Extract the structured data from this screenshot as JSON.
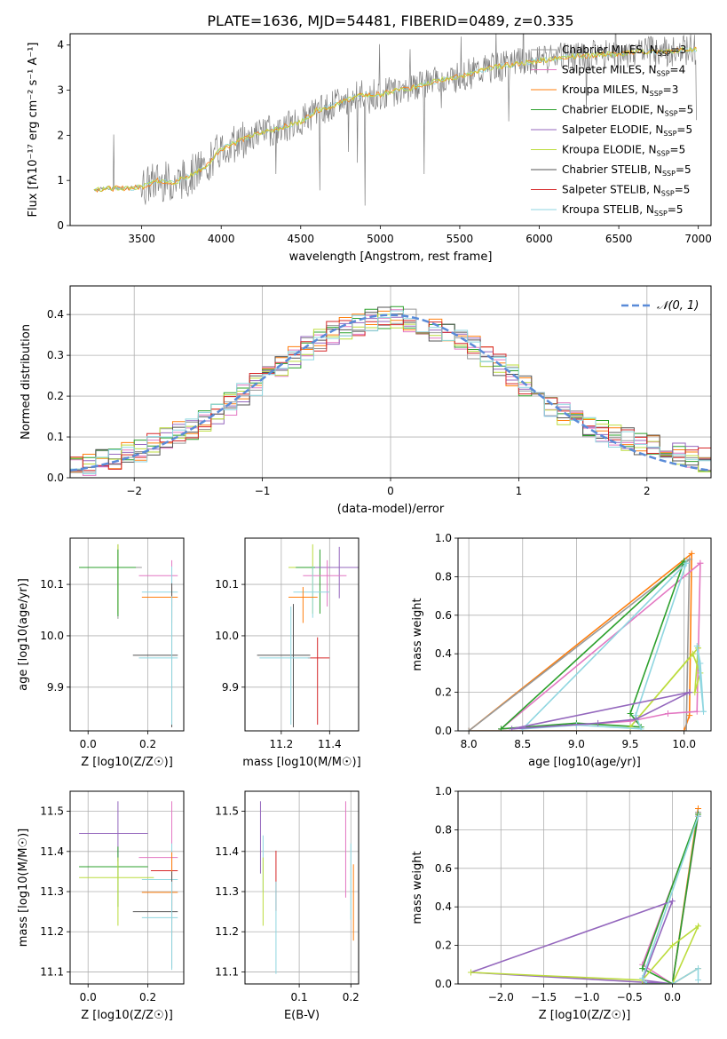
{
  "title": "PLATE=1636, MJD=54481, FIBERID=0489, z=0.335",
  "colors": {
    "Chabrier MILES": "#999999",
    "Salpeter MILES": "#e377c2",
    "Kroupa MILES": "#ff7f0e",
    "Chabrier ELODIE": "#2ca02c",
    "Salpeter ELODIE": "#9467bd",
    "Kroupa ELODIE": "#bcdc3e",
    "Chabrier STELIB": "#555555",
    "Salpeter STELIB": "#d62728",
    "Kroupa STELIB": "#8fd6e0",
    "normal": "#5a8bd8",
    "data": "#808080"
  },
  "chart_data": [
    {
      "id": "spectrum",
      "type": "line",
      "xlabel": "wavelength [Angstrom, rest frame]",
      "ylabel": "Flux [fλ10⁻¹⁷ erg cm⁻² s⁻¹ A⁻¹]",
      "xlim": [
        3050,
        7080
      ],
      "ylim": [
        0,
        4.25
      ],
      "xticks": [
        3500,
        4000,
        4500,
        5000,
        5500,
        6000,
        6500,
        7000
      ],
      "yticks": [
        0,
        1,
        2,
        3,
        4
      ],
      "data_curve": {
        "x": [
          3200,
          3300,
          3400,
          3500,
          3600,
          3700,
          3800,
          3900,
          4000,
          4100,
          4200,
          4300,
          4400,
          4500,
          4600,
          4700,
          4800,
          4900,
          5000,
          5100,
          5200,
          5300,
          5400,
          5500,
          5600,
          5700,
          5800,
          5900,
          6000,
          6100,
          6200,
          6300,
          6400,
          6500,
          6600,
          6700,
          6800,
          6900
        ],
        "y": [
          0.8,
          0.82,
          0.83,
          0.85,
          1.0,
          0.95,
          1.1,
          1.3,
          1.7,
          1.85,
          2.0,
          2.1,
          2.2,
          2.3,
          2.55,
          2.65,
          2.8,
          2.9,
          2.9,
          3.0,
          3.05,
          3.15,
          3.25,
          3.3,
          3.4,
          3.5,
          3.55,
          3.6,
          3.65,
          3.7,
          3.75,
          3.75,
          3.8,
          3.8,
          3.85,
          3.85,
          3.85,
          3.9
        ]
      },
      "legend": [
        "Chabrier MILES, N_SSP=3",
        "Salpeter MILES, N_SSP=4",
        "Kroupa MILES, N_SSP=3",
        "Chabrier ELODIE, N_SSP=5",
        "Salpeter ELODIE, N_SSP=5",
        "Kroupa ELODIE, N_SSP=5",
        "Chabrier STELIB, N_SSP=5",
        "Salpeter STELIB, N_SSP=5",
        "Kroupa STELIB, N_SSP=5"
      ]
    },
    {
      "id": "residuals",
      "type": "histogram",
      "xlabel": "(data-model)/error",
      "ylabel": "Normed distribution",
      "xlim": [
        -2.5,
        2.5
      ],
      "ylim": [
        0,
        0.47
      ],
      "xticks": [
        -2,
        -1,
        0,
        1,
        2
      ],
      "yticks": [
        0.0,
        0.1,
        0.2,
        0.3,
        0.4
      ],
      "bin_width": 0.1,
      "legend": [
        "𝒩(0, 1)"
      ],
      "model_envelope": {
        "x": [
          -2.5,
          -2.0,
          -1.5,
          -1.2,
          -1.0,
          -0.5,
          0.0,
          0.5,
          1.0,
          1.2,
          1.5,
          2.0,
          2.5
        ],
        "y": [
          0.025,
          0.06,
          0.13,
          0.19,
          0.24,
          0.35,
          0.4,
          0.35,
          0.24,
          0.19,
          0.13,
          0.08,
          0.04
        ]
      }
    },
    {
      "id": "age-vs-Z",
      "type": "errorbar",
      "xlabel": "Z [log10(Z/Z☉)]",
      "ylabel": "age [log10(age/yr)]",
      "xlim": [
        -0.06,
        0.32
      ],
      "ylim": [
        9.815,
        10.19
      ],
      "xticks": [
        0.0,
        0.2
      ],
      "yticks": [
        9.9,
        10.0,
        10.1
      ],
      "points": [
        {
          "model": "Chabrier MILES",
          "x": 0.1,
          "y": 10.133,
          "xerr": [
            0.13,
            0.08
          ],
          "yerr": [
            0.1,
            0.045
          ]
        },
        {
          "model": "Kroupa ELODIE",
          "x": 0.1,
          "y": 10.133,
          "xerr": [
            0.12,
            0.05
          ],
          "yerr": [
            0.09,
            0.045
          ]
        },
        {
          "model": "Chabrier ELODIE",
          "x": 0.1,
          "y": 10.133,
          "xerr": [
            0.13,
            0.06
          ],
          "yerr": [
            0.095,
            0.035
          ]
        },
        {
          "model": "Salpeter MILES",
          "x": 0.28,
          "y": 10.117,
          "xerr": [
            0.11,
            0.02
          ],
          "yerr": [
            0.06,
            0.03
          ]
        },
        {
          "model": "Kroupa STELIB",
          "x": 0.28,
          "y": 10.085,
          "xerr": [
            0.1,
            0.02
          ],
          "yerr": [
            0.05,
            0.05
          ]
        },
        {
          "model": "Kroupa MILES",
          "x": 0.28,
          "y": 10.075,
          "xerr": [
            0.1,
            0.02
          ],
          "yerr": [
            0.05,
            0.02
          ]
        },
        {
          "model": "Chabrier STELIB",
          "x": 0.28,
          "y": 9.962,
          "xerr": [
            0.13,
            0.02
          ],
          "yerr": [
            0.14,
            0.14
          ]
        },
        {
          "model": "Kroupa STELIB",
          "x": 0.28,
          "y": 9.957,
          "xerr": [
            0.11,
            0.02
          ],
          "yerr": [
            0.13,
            0.12
          ]
        }
      ]
    },
    {
      "id": "age-vs-mass",
      "type": "errorbar",
      "xlabel": "mass [log10(M/M☉)]",
      "ylim": [
        9.815,
        10.19
      ],
      "xlim": [
        11.05,
        11.52
      ],
      "xticks": [
        11.2,
        11.4
      ],
      "yticks": [
        9.9,
        10.0,
        10.1
      ],
      "points": [
        {
          "model": "Kroupa ELODIE",
          "x": 11.33,
          "y": 10.133,
          "xerr": [
            0.1,
            0.07
          ],
          "yerr": [
            0.09,
            0.045
          ]
        },
        {
          "model": "Chabrier ELODIE",
          "x": 11.36,
          "y": 10.133,
          "xerr": [
            0.1,
            0.03
          ],
          "yerr": [
            0.09,
            0.035
          ]
        },
        {
          "model": "Salpeter ELODIE",
          "x": 11.44,
          "y": 10.133,
          "xerr": [
            0.1,
            0.08
          ],
          "yerr": [
            0.06,
            0.04
          ]
        },
        {
          "model": "Salpeter MILES",
          "x": 11.39,
          "y": 10.117,
          "xerr": [
            0.1,
            0.08
          ],
          "yerr": [
            0.06,
            0.03
          ]
        },
        {
          "model": "Kroupa STELIB",
          "x": 11.33,
          "y": 10.085,
          "xerr": [
            0.08,
            0.07
          ],
          "yerr": [
            0.05,
            0.05
          ]
        },
        {
          "model": "Kroupa MILES",
          "x": 11.29,
          "y": 10.075,
          "xerr": [
            0.06,
            0.06
          ],
          "yerr": [
            0.05,
            0.02
          ]
        },
        {
          "model": "Chabrier STELIB",
          "x": 11.25,
          "y": 9.962,
          "xerr": [
            0.15,
            0.07
          ],
          "yerr": [
            0.14,
            0.1
          ]
        },
        {
          "model": "Salpeter STELIB",
          "x": 11.35,
          "y": 9.957,
          "xerr": [
            0.04,
            0.05
          ],
          "yerr": [
            0.13,
            0.04
          ]
        },
        {
          "model": "Kroupa STELIB",
          "x": 11.24,
          "y": 9.957,
          "xerr": [
            0.13,
            0.08
          ],
          "yerr": [
            0.13,
            0.1
          ]
        }
      ]
    },
    {
      "id": "weight-vs-age",
      "type": "line",
      "xlabel": "age [log10(age/yr)]",
      "ylabel": "mass weight",
      "xlim": [
        7.9,
        10.25
      ],
      "ylim": [
        0,
        1.0
      ],
      "xticks": [
        8.0,
        8.5,
        9.0,
        9.5,
        10.0
      ],
      "yticks": [
        0.0,
        0.2,
        0.4,
        0.6,
        0.8,
        1.0
      ],
      "series": [
        {
          "model": "Kroupa MILES",
          "x": [
            8.0,
            10.07,
            10.05,
            10.0,
            8.0
          ],
          "y": [
            0.0,
            0.92,
            0.08,
            0.0,
            0.0
          ]
        },
        {
          "model": "Chabrier MILES",
          "x": [
            8.0,
            10.05,
            10.02,
            8.0
          ],
          "y": [
            0.0,
            0.89,
            0.0,
            0.0
          ]
        },
        {
          "model": "Salpeter MILES",
          "x": [
            10.15,
            10.12,
            9.85,
            9.5,
            9.0,
            8.3,
            10.15
          ],
          "y": [
            0.87,
            0.1,
            0.09,
            0.05,
            0.03,
            0.01,
            0.87
          ]
        },
        {
          "model": "Chabrier ELODIE",
          "x": [
            10.0,
            9.5,
            9.6,
            9.0,
            8.3,
            10.0
          ],
          "y": [
            0.88,
            0.09,
            0.02,
            0.04,
            0.01,
            0.88
          ]
        },
        {
          "model": "Kroupa ELODIE",
          "x": [
            10.13,
            10.1,
            10.15,
            10.08,
            9.5,
            10.13
          ],
          "y": [
            0.43,
            0.2,
            0.3,
            0.4,
            0.02,
            0.43
          ]
        },
        {
          "model": "Kroupa STELIB",
          "x": [
            10.02,
            9.55,
            9.6,
            9.0,
            8.5,
            10.02
          ],
          "y": [
            0.87,
            0.08,
            0.01,
            0.03,
            0.01,
            0.87
          ]
        },
        {
          "model": "Salpeter ELODIE",
          "x": [
            10.05,
            9.55,
            9.2,
            8.4,
            10.05
          ],
          "y": [
            0.2,
            0.06,
            0.04,
            0.01,
            0.2
          ]
        },
        {
          "model": "Kroupa STELIB",
          "x": [
            10.18,
            10.15,
            10.12,
            10.18
          ],
          "y": [
            0.1,
            0.35,
            0.44,
            0.1
          ]
        }
      ]
    },
    {
      "id": "mass-vs-Z",
      "type": "errorbar",
      "xlabel": "Z [log10(Z/Z☉)]",
      "ylabel": "mass [log10(M/M☉)]",
      "xlim": [
        -0.06,
        0.32
      ],
      "ylim": [
        11.07,
        11.55
      ],
      "xticks": [
        0.0,
        0.2
      ],
      "yticks": [
        11.1,
        11.2,
        11.3,
        11.4,
        11.5
      ],
      "points": [
        {
          "model": "Salpeter ELODIE",
          "x": 0.1,
          "y": 11.445,
          "xerr": [
            0.13,
            0.1
          ],
          "yerr": [
            0.07,
            0.08
          ]
        },
        {
          "model": "Chabrier ELODIE",
          "x": 0.1,
          "y": 11.362,
          "xerr": [
            0.13,
            0.1
          ],
          "yerr": [
            0.1,
            0.05
          ]
        },
        {
          "model": "Kroupa ELODIE",
          "x": 0.1,
          "y": 11.335,
          "xerr": [
            0.13,
            0.12
          ],
          "yerr": [
            0.12,
            0.05
          ]
        },
        {
          "model": "Salpeter MILES",
          "x": 0.28,
          "y": 11.385,
          "xerr": [
            0.11,
            0.02
          ],
          "yerr": [
            0.12,
            0.14
          ]
        },
        {
          "model": "Salpeter STELIB",
          "x": 0.28,
          "y": 11.352,
          "xerr": [
            0.07,
            0.02
          ],
          "yerr": [
            0.1,
            0.05
          ]
        },
        {
          "model": "Kroupa STELIB",
          "x": 0.28,
          "y": 11.33,
          "xerr": [
            0.1,
            0.02
          ],
          "yerr": [
            0.11,
            0.09
          ]
        },
        {
          "model": "Kroupa MILES",
          "x": 0.28,
          "y": 11.298,
          "xerr": [
            0.1,
            0.02
          ],
          "yerr": [
            0.11,
            0.1
          ]
        },
        {
          "model": "Chabrier STELIB",
          "x": 0.28,
          "y": 11.25,
          "xerr": [
            0.13,
            0.02
          ],
          "yerr": [
            0.14,
            0.1
          ]
        },
        {
          "model": "Kroupa STELIB",
          "x": 0.28,
          "y": 11.235,
          "xerr": [
            0.1,
            0.02
          ],
          "yerr": [
            0.13,
            0.09
          ]
        }
      ]
    },
    {
      "id": "mass-vs-ebv",
      "type": "errorbar",
      "xlabel": "E(B-V)",
      "xlim": [
        -0.005,
        0.215
      ],
      "ylim": [
        11.07,
        11.55
      ],
      "xticks": [
        0.1,
        0.2
      ],
      "yticks": [
        11.1,
        11.2,
        11.3,
        11.4,
        11.5
      ],
      "points": [
        {
          "model": "Salpeter ELODIE",
          "x": 0.025,
          "y": 11.445,
          "xerr": [
            0,
            0
          ],
          "yerr": [
            0.1,
            0.08
          ]
        },
        {
          "model": "Kroupa STELIB",
          "x": 0.03,
          "y": 11.4,
          "xerr": [
            0,
            0
          ],
          "yerr": [
            0.1,
            0.04
          ]
        },
        {
          "model": "Kroupa ELODIE",
          "x": 0.03,
          "y": 11.335,
          "xerr": [
            0,
            0
          ],
          "yerr": [
            0.12,
            0.05
          ]
        },
        {
          "model": "Salpeter STELIB",
          "x": 0.055,
          "y": 11.352,
          "xerr": [
            0,
            0
          ],
          "yerr": [
            0.1,
            0.05
          ]
        },
        {
          "model": "Kroupa STELIB",
          "x": 0.055,
          "y": 11.235,
          "xerr": [
            0,
            0
          ],
          "yerr": [
            0.14,
            0.09
          ]
        },
        {
          "model": "Salpeter MILES",
          "x": 0.19,
          "y": 11.385,
          "xerr": [
            0,
            0
          ],
          "yerr": [
            0.1,
            0.14
          ]
        },
        {
          "model": "Kroupa STELIB",
          "x": 0.2,
          "y": 11.33,
          "xerr": [
            0,
            0
          ],
          "yerr": [
            0.1,
            0.09
          ]
        },
        {
          "model": "Kroupa MILES",
          "x": 0.205,
          "y": 11.298,
          "xerr": [
            0,
            0
          ],
          "yerr": [
            0.12,
            0.07
          ]
        }
      ]
    },
    {
      "id": "weight-vs-Z",
      "type": "line",
      "xlabel": "Z [log10(Z/Z☉)]",
      "ylabel": "mass weight",
      "xlim": [
        -2.5,
        0.45
      ],
      "ylim": [
        0,
        1.0
      ],
      "xticks": [
        -2.0,
        -1.5,
        -1.0,
        -0.5,
        0.0
      ],
      "yticks": [
        0.0,
        0.2,
        0.4,
        0.6,
        0.8,
        1.0
      ],
      "series": [
        {
          "model": "Kroupa MILES",
          "x": [
            0.3,
            0.0,
            0.3
          ],
          "y": [
            0.91,
            0.0,
            0.08
          ]
        },
        {
          "model": "Chabrier MILES",
          "x": [
            0.3,
            0.0,
            0.3
          ],
          "y": [
            0.89,
            0.0,
            0.89
          ]
        },
        {
          "model": "Salpeter MILES",
          "x": [
            0.3,
            -0.35,
            0.0,
            0.3
          ],
          "y": [
            0.87,
            0.1,
            0.0,
            0.87
          ]
        },
        {
          "model": "Chabrier ELODIE",
          "x": [
            0.3,
            -0.35,
            0.0,
            0.3
          ],
          "y": [
            0.88,
            0.08,
            0.0,
            0.88
          ]
        },
        {
          "model": "Salpeter ELODIE",
          "x": [
            -2.35,
            0.0,
            -0.35,
            0.0,
            -2.35
          ],
          "y": [
            0.06,
            0.43,
            0.02,
            0.0,
            0.06
          ]
        },
        {
          "model": "Kroupa ELODIE",
          "x": [
            -2.35,
            -0.35,
            0.0,
            0.3,
            0.0,
            -0.35
          ],
          "y": [
            0.06,
            0.02,
            0.2,
            0.3,
            0.0,
            0.0
          ]
        },
        {
          "model": "Kroupa STELIB",
          "x": [
            0.3,
            -0.35,
            -0.3,
            0.0,
            0.3,
            0.3
          ],
          "y": [
            0.87,
            0.03,
            0.0,
            0.0,
            0.08,
            0.02
          ]
        }
      ]
    }
  ]
}
